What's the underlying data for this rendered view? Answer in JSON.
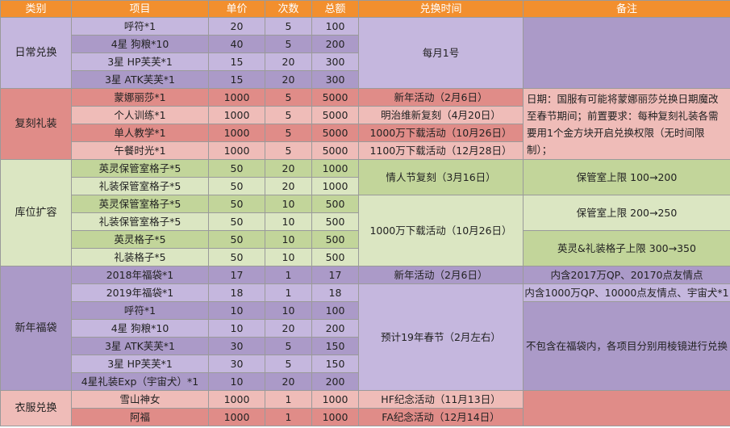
{
  "headers": [
    "类别",
    "项目",
    "单价",
    "次数",
    "总额",
    "兑换时间",
    "备注"
  ],
  "daily": {
    "category": "日常兑换",
    "rows": [
      {
        "item": "呼符*1",
        "price": "20",
        "count": "5",
        "total": "100"
      },
      {
        "item": "4星 狗粮*10",
        "price": "40",
        "count": "5",
        "total": "200"
      },
      {
        "item": "3星 HP芙芙*1",
        "price": "15",
        "count": "20",
        "total": "300"
      },
      {
        "item": "3星 ATK芙芙*1",
        "price": "15",
        "count": "20",
        "total": "300"
      }
    ],
    "time": "每月1号",
    "note": ""
  },
  "reprint": {
    "category": "复刻礼装",
    "rows": [
      {
        "item": "蒙娜丽莎*1",
        "price": "1000",
        "count": "5",
        "total": "5000",
        "time": "新年活动（2月6日）"
      },
      {
        "item": "个人训练*1",
        "price": "1000",
        "count": "5",
        "total": "5000",
        "time": "明治维新复刻（4月20日）"
      },
      {
        "item": "单人教学*1",
        "price": "1000",
        "count": "5",
        "total": "5000",
        "time": "1000万下载活动（10月26日）"
      },
      {
        "item": "午餐时光*1",
        "price": "1000",
        "count": "5",
        "total": "5000",
        "time": "1100万下载活动（12月28日）"
      }
    ],
    "note": "日期：国服有可能将蒙娜丽莎兑换日期魔改至春节期间；前置要求：每种复刻礼装各需要用1个金方块开启兑换权限（无时间限制）；"
  },
  "storage": {
    "category": "库位扩容",
    "rows": [
      {
        "item": "英灵保管室格子*5",
        "price": "50",
        "count": "20",
        "total": "1000"
      },
      {
        "item": "礼装保管室格子*5",
        "price": "50",
        "count": "20",
        "total": "1000"
      },
      {
        "item": "英灵保管室格子*5",
        "price": "50",
        "count": "10",
        "total": "500"
      },
      {
        "item": "礼装保管室格子*5",
        "price": "50",
        "count": "10",
        "total": "500"
      },
      {
        "item": "英灵格子*5",
        "price": "50",
        "count": "10",
        "total": "500"
      },
      {
        "item": "礼装格子*5",
        "price": "50",
        "count": "10",
        "total": "500"
      }
    ],
    "time1": "情人节复刻（3月16日）",
    "time2": "1000万下载活动（10月26日）",
    "note1": "保管室上限 100→200",
    "note2": "保管室上限 200→250",
    "note3": "英灵&礼装格子上限 300→350"
  },
  "newyear": {
    "category": "新年福袋",
    "rows": [
      {
        "item": "2018年福袋*1",
        "price": "17",
        "count": "1",
        "total": "17"
      },
      {
        "item": "2019年福袋*1",
        "price": "18",
        "count": "1",
        "total": "18"
      },
      {
        "item": "呼符*1",
        "price": "10",
        "count": "10",
        "total": "100"
      },
      {
        "item": "4星 狗粮*10",
        "price": "10",
        "count": "20",
        "total": "200"
      },
      {
        "item": "3星 ATK芙芙*1",
        "price": "30",
        "count": "5",
        "total": "150"
      },
      {
        "item": "3星 HP芙芙*1",
        "price": "30",
        "count": "5",
        "total": "150"
      },
      {
        "item": "4星礼装Exp（宇宙犬）*1",
        "price": "10",
        "count": "20",
        "total": "200"
      }
    ],
    "time1": "新年活动（2月6日）",
    "time2": "预计19年春节（2月左右）",
    "note1": "内含2017万QP、20170点友情点",
    "note2": "内含1000万QP、10000点友情点、宇宙犬*1",
    "note3": "不包含在福袋内，各项目分别用棱镜进行兑换"
  },
  "costume": {
    "category": "衣服兑换",
    "rows": [
      {
        "item": "雪山神女",
        "price": "1000",
        "count": "1",
        "total": "1000",
        "time": "HF纪念活动（11月13日）"
      },
      {
        "item": "阿福",
        "price": "1000",
        "count": "1",
        "total": "1000",
        "time": "FA纪念活动（12月14日）"
      }
    ],
    "note": ""
  }
}
